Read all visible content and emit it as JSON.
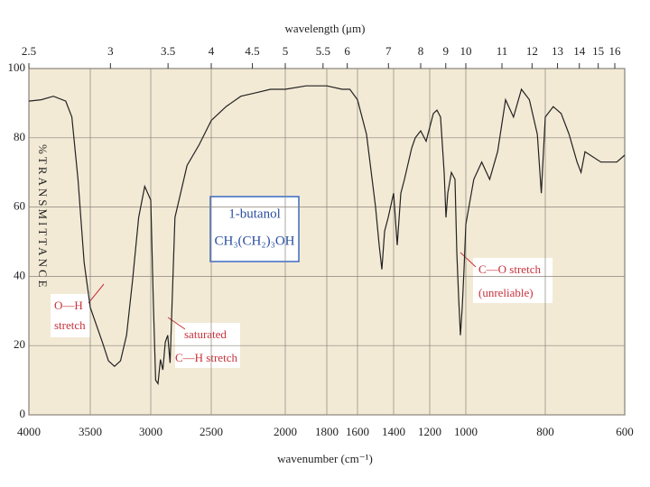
{
  "chart_data": {
    "type": "line",
    "xlabel": "wavenumber (cm⁻¹)",
    "x2label": "wavelength (μm)",
    "ylabel": "%TRANSMITTANCE",
    "annotations": [
      "1-butanol",
      "CH₃(CH₂)₃OH",
      "O—H",
      "stretch",
      "saturated",
      "C—H stretch",
      "C—O stretch",
      "(unreliable)"
    ],
    "xlim": [
      4000,
      600
    ],
    "ylim": [
      0,
      100
    ],
    "xticks": [
      4000,
      3500,
      3000,
      2500,
      2000,
      1800,
      1600,
      1400,
      1200,
      1000,
      800,
      600
    ],
    "x2ticks": [
      2.5,
      3,
      3.5,
      4,
      4.5,
      5,
      5.5,
      6,
      7,
      8,
      9,
      10,
      11,
      12,
      13,
      14,
      15,
      16
    ],
    "yticks": [
      0,
      20,
      40,
      60,
      80,
      100
    ],
    "grid": true,
    "series": [
      {
        "color": "#222222",
        "x": [
          4000,
          3900,
          3800,
          3700,
          3650,
          3600,
          3550,
          3500,
          3450,
          3400,
          3350,
          3300,
          3250,
          3200,
          3150,
          3100,
          3050,
          3000,
          2980,
          2960,
          2940,
          2920,
          2900,
          2880,
          2860,
          2840,
          2800,
          2700,
          2600,
          2500,
          2400,
          2300,
          2200,
          2100,
          2000,
          1900,
          1800,
          1700,
          1650,
          1600,
          1550,
          1500,
          1480,
          1465,
          1450,
          1430,
          1400,
          1380,
          1360,
          1340,
          1300,
          1280,
          1250,
          1220,
          1200,
          1180,
          1160,
          1140,
          1120,
          1110,
          1100,
          1080,
          1060,
          1050,
          1040,
          1030,
          1020,
          1010,
          1000,
          980,
          960,
          940,
          920,
          900,
          880,
          860,
          840,
          820,
          810,
          800,
          780,
          760,
          740,
          720,
          710,
          700,
          660,
          620,
          600
        ],
        "values": [
          90.6,
          91,
          92,
          90.6,
          86,
          68,
          44,
          31,
          26,
          21,
          15.6,
          14,
          15.6,
          23,
          39,
          57,
          66,
          62,
          34,
          10,
          9,
          16,
          13,
          21,
          23,
          15,
          57,
          72,
          78,
          85,
          89,
          92,
          93,
          94,
          94,
          95,
          95,
          94,
          94,
          91,
          81,
          60,
          49,
          42,
          53,
          57,
          64,
          49,
          64,
          68,
          77,
          80,
          82,
          79,
          83,
          87,
          88,
          86,
          70,
          57,
          64,
          70,
          68,
          47,
          34,
          23,
          31,
          42,
          55,
          68,
          73,
          68,
          76,
          91,
          86,
          94,
          91,
          81,
          64,
          86,
          89,
          87,
          81,
          73,
          70,
          76,
          73,
          73,
          75
        ]
      }
    ]
  }
}
